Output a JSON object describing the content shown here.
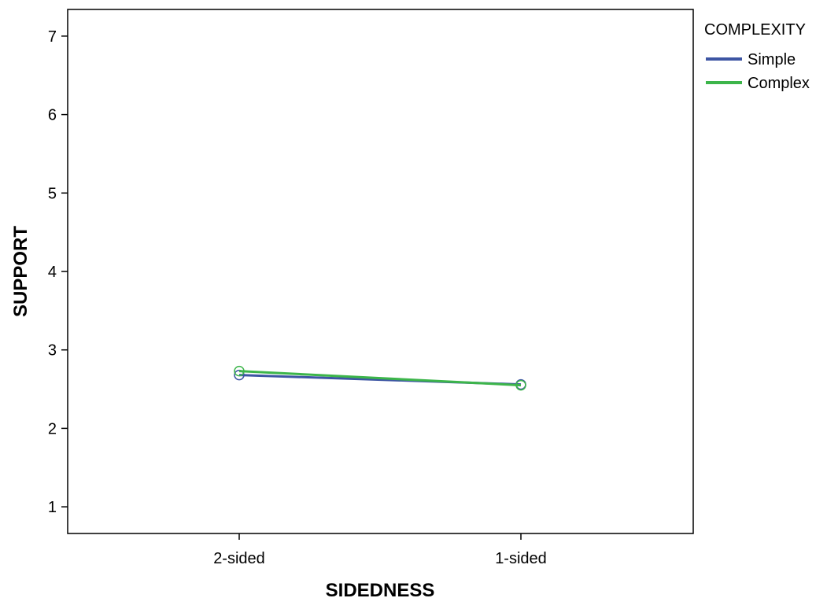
{
  "chart_data": {
    "type": "line",
    "xlabel": "SIDEDNESS",
    "ylabel": "SUPPORT",
    "categories": [
      "2-sided",
      "1-sided"
    ],
    "ylim": [
      0.66,
      7.34
    ],
    "yticks": [
      1,
      2,
      3,
      4,
      5,
      6,
      7
    ],
    "grid": false,
    "legend": {
      "title": "COMPLEXITY",
      "placement": "right"
    },
    "series": [
      {
        "name": "Simple",
        "values": [
          2.68,
          2.56
        ],
        "color": "#3d55a3"
      },
      {
        "name": "Complex",
        "values": [
          2.73,
          2.55
        ],
        "color": "#3cb54a"
      }
    ],
    "marker": "open-circle"
  }
}
